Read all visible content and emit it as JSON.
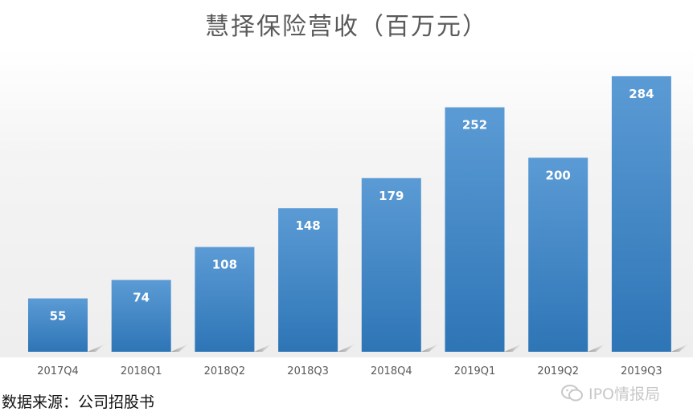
{
  "chart_data": {
    "type": "bar",
    "title": "慧择保险营收（百万元）",
    "categories": [
      "2017Q4",
      "2018Q1",
      "2018Q2",
      "2018Q3",
      "2018Q4",
      "2019Q1",
      "2019Q2",
      "2019Q3"
    ],
    "values": [
      55,
      74,
      108,
      148,
      179,
      252,
      200,
      284
    ],
    "xlabel": "",
    "ylabel": "",
    "ylim": [
      0,
      300
    ],
    "grid": false,
    "legend": "none",
    "data_labels": true,
    "colors": {
      "bar_top": "#5b9bd5",
      "bar_bottom": "#2e75b6",
      "data_label": "#ffffff",
      "tick_label": "#595959"
    }
  },
  "source_note": "数据来源：公司招股书",
  "watermark": {
    "text": "IPO情报局",
    "icon": "wechat-logo-icon"
  }
}
